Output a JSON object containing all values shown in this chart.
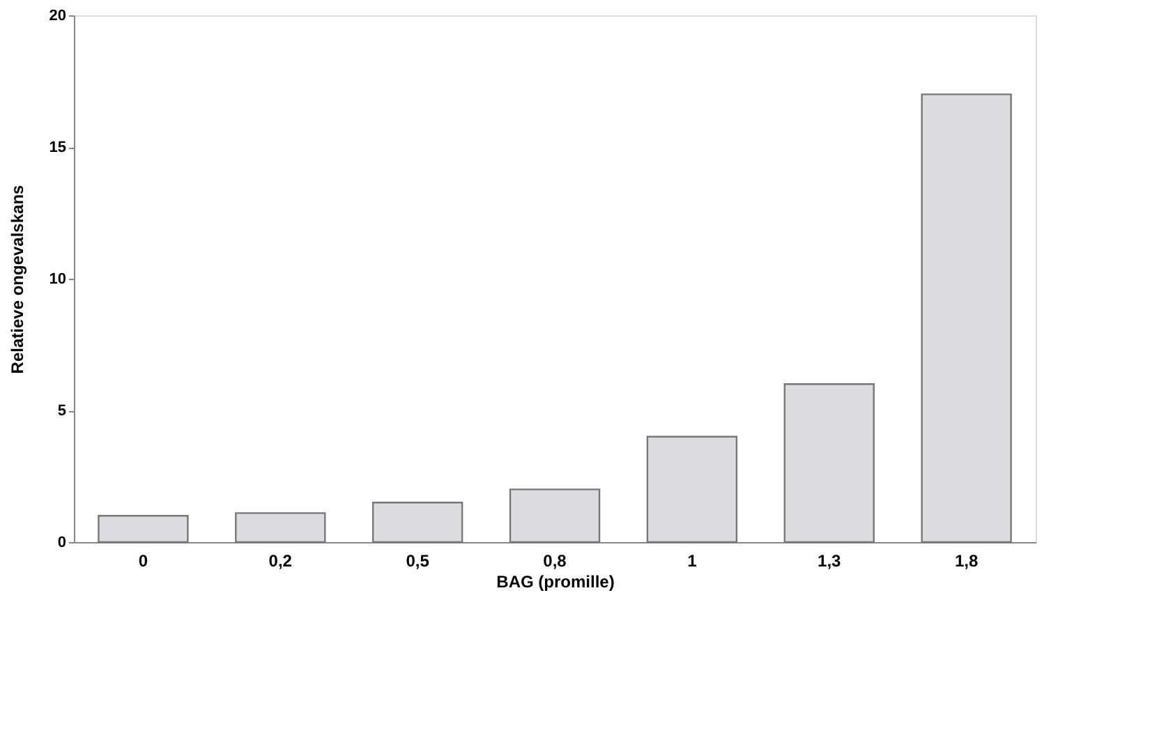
{
  "chart_data": {
    "type": "bar",
    "xlabel": "BAG (promille)",
    "ylabel": "Relatieve ongevalskans",
    "categories": [
      "0",
      "0,2",
      "0,5",
      "0,8",
      "1",
      "1,3",
      "1,8"
    ],
    "values": [
      1.0,
      1.1,
      1.5,
      2.0,
      4.0,
      6.0,
      17.0
    ],
    "color": "#dcdce0",
    "ylim": [
      0,
      20
    ],
    "yticks": [
      0,
      5,
      10,
      15,
      20
    ],
    "grid": false
  }
}
